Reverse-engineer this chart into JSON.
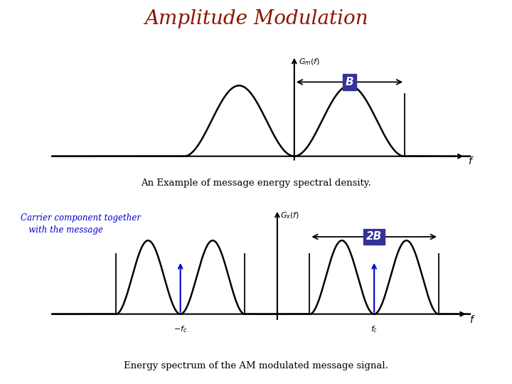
{
  "title": "Amplitude Modulation",
  "title_color": "#8B1500",
  "title_fontsize": 20,
  "caption1": "An Example of message energy spectral density.",
  "caption2": "Energy spectrum of the AM modulated message signal.",
  "carrier_label": "Carrier component together\n   with the message",
  "bg_color": "#ffffff",
  "curve_color": "#000000",
  "arrow_color": "#0000cc",
  "label_box_color": "#333399",
  "label_text_color": "#ffffff",
  "B_label": "B",
  "twoB_label": "2B",
  "f_label": "f"
}
